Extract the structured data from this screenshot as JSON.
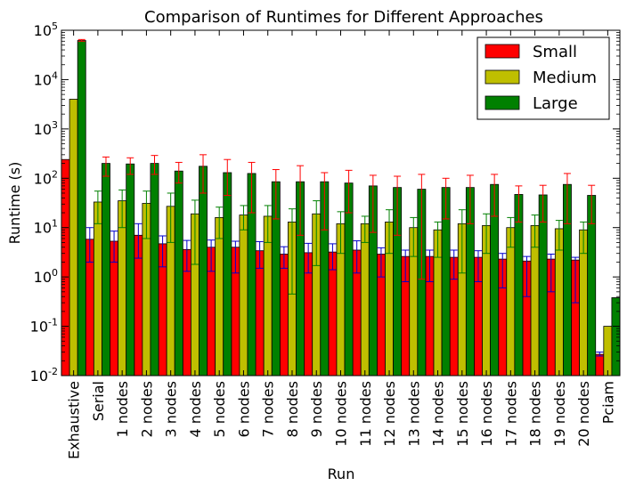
{
  "chart_data": {
    "type": "bar",
    "title": "Comparison of Runtimes for Different Approaches",
    "xlabel": "Run",
    "ylabel": "Runtime (s)",
    "yscale": "log",
    "ylim": [
      0.01,
      100000
    ],
    "yticks": [
      {
        "value": 0.01,
        "base": "10",
        "exp": "-2"
      },
      {
        "value": 0.1,
        "base": "10",
        "exp": "-1"
      },
      {
        "value": 1,
        "base": "10",
        "exp": "0"
      },
      {
        "value": 10,
        "base": "10",
        "exp": "1"
      },
      {
        "value": 100,
        "base": "10",
        "exp": "2"
      },
      {
        "value": 1000,
        "base": "10",
        "exp": "3"
      },
      {
        "value": 10000,
        "base": "10",
        "exp": "4"
      },
      {
        "value": 100000,
        "base": "10",
        "exp": "5"
      }
    ],
    "grid": false,
    "legend_position": "top-right",
    "categories": [
      "Exhaustive",
      "Serial",
      "1 nodes",
      "2 nodes",
      "3 nodes",
      "4 nodes",
      "5 nodes",
      "6 nodes",
      "7 nodes",
      "8 nodes",
      "9 nodes",
      "10 nodes",
      "11 nodes",
      "12 nodes",
      "13 nodes",
      "14 nodes",
      "15 nodes",
      "16 nodes",
      "17 nodes",
      "18 nodes",
      "19 nodes",
      "20 nodes",
      "Pciam"
    ],
    "series": [
      {
        "name": "Small",
        "color": "#ff0000",
        "errcolor": "#0000cc",
        "values": [
          240,
          5.8,
          5.3,
          7.0,
          4.7,
          3.6,
          4.0,
          4.0,
          3.4,
          2.9,
          3.1,
          3.2,
          3.5,
          2.9,
          2.6,
          2.6,
          2.5,
          2.5,
          2.3,
          2.1,
          2.3,
          2.2,
          0.027
        ],
        "err_low": [
          null,
          2.0,
          2.0,
          2.4,
          1.6,
          1.3,
          1.3,
          1.2,
          1.5,
          1.5,
          1.2,
          1.4,
          1.2,
          1.0,
          0.8,
          0.8,
          0.9,
          0.8,
          0.6,
          0.4,
          0.5,
          0.3,
          0.025
        ],
        "err_high": [
          null,
          10.0,
          8.5,
          12.0,
          6.8,
          5.5,
          5.6,
          5.3,
          5.2,
          4.1,
          4.8,
          4.7,
          5.4,
          3.9,
          3.5,
          3.5,
          3.5,
          3.4,
          3.0,
          2.6,
          2.9,
          2.5,
          0.03
        ]
      },
      {
        "name": "Medium",
        "color": "#bfbf00",
        "errcolor": "#008000",
        "values": [
          4000,
          33,
          35,
          31,
          27,
          19,
          16,
          18,
          17,
          13,
          19,
          12,
          12,
          13,
          10,
          9,
          12,
          11,
          10,
          11,
          9.5,
          9,
          0.1
        ],
        "err_low": [
          null,
          12,
          10,
          6,
          5,
          1.8,
          6,
          9,
          5,
          0.45,
          1.7,
          3,
          5,
          3,
          2.6,
          2.5,
          1.2,
          3,
          4,
          4,
          3.5,
          3,
          null
        ],
        "err_high": [
          null,
          55,
          58,
          55,
          50,
          36,
          26,
          28,
          28,
          24,
          35,
          21,
          17,
          23,
          16,
          13,
          23,
          19,
          16,
          18,
          14,
          13,
          null
        ]
      },
      {
        "name": "Large",
        "color": "#008000",
        "errcolor": "#ff0000",
        "values": [
          62000,
          200,
          195,
          200,
          140,
          175,
          130,
          125,
          85,
          85,
          85,
          80,
          70,
          65,
          60,
          65,
          65,
          75,
          47,
          46,
          75,
          45,
          0.38
        ],
        "err_low": [
          60000,
          110,
          120,
          120,
          80,
          50,
          45,
          20,
          15,
          7,
          9,
          20,
          8,
          7,
          0.9,
          15,
          12,
          17,
          13,
          13,
          12,
          12,
          null
        ],
        "err_high": [
          65000,
          270,
          260,
          290,
          210,
          300,
          240,
          210,
          150,
          180,
          130,
          145,
          115,
          110,
          120,
          100,
          115,
          120,
          70,
          72,
          125,
          72,
          null
        ]
      }
    ]
  }
}
